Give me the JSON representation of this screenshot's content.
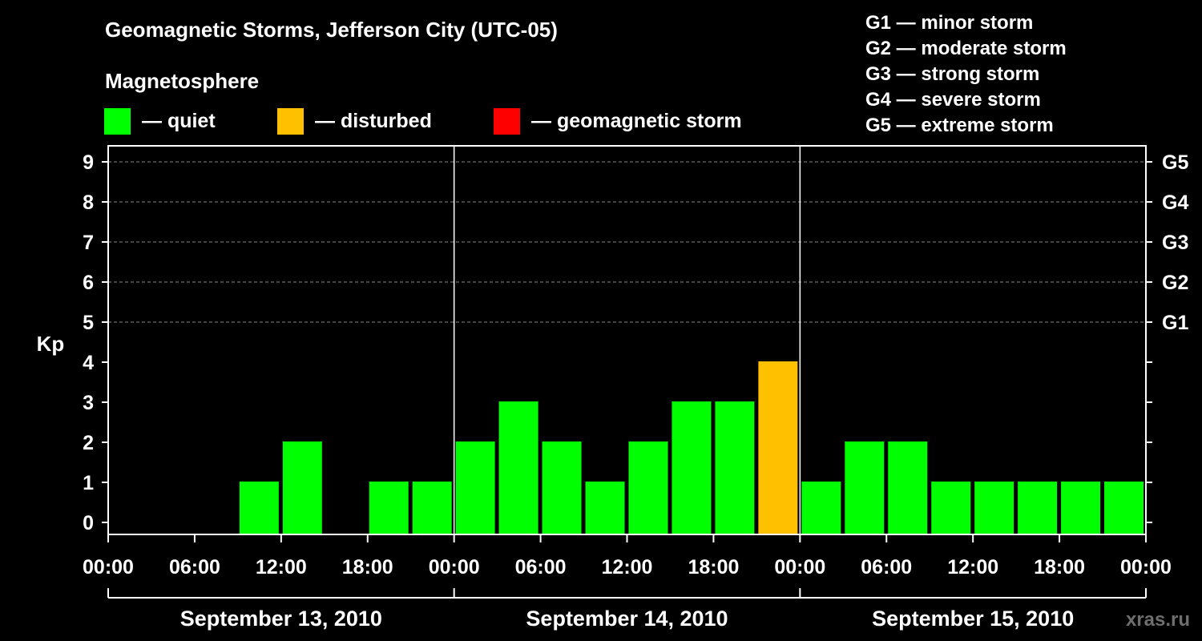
{
  "title": "Geomagnetic Storms, Jefferson City (UTC-05)",
  "subtitle": "Magnetosphere",
  "legend": [
    {
      "label": "— quiet",
      "color": "#00ff00"
    },
    {
      "label": "— disturbed",
      "color": "#ffc000"
    },
    {
      "label": "— geomagnetic storm",
      "color": "#ff0000"
    }
  ],
  "g_scale": [
    "G1 — minor storm",
    "G2 — moderate storm",
    "G3 — strong storm",
    "G4 — severe storm",
    "G5 — extreme storm"
  ],
  "watermark": "xras.ru",
  "chart_data": {
    "type": "bar",
    "ylabel": "Kp",
    "ylim": [
      0,
      9
    ],
    "y_ticks": [
      "0",
      "1",
      "2",
      "3",
      "4",
      "5",
      "6",
      "7",
      "8",
      "9"
    ],
    "right_ticks": [
      {
        "value": 5,
        "label": "G1"
      },
      {
        "value": 6,
        "label": "G2"
      },
      {
        "value": 7,
        "label": "G3"
      },
      {
        "value": 8,
        "label": "G4"
      },
      {
        "value": 9,
        "label": "G5"
      }
    ],
    "x_ticks": [
      "00:00",
      "06:00",
      "12:00",
      "18:00",
      "00:00",
      "06:00",
      "12:00",
      "18:00",
      "00:00",
      "06:00",
      "12:00",
      "18:00",
      "00:00"
    ],
    "days": [
      "September 13, 2010",
      "September 14, 2010",
      "September 15, 2010"
    ],
    "grid": "dashed horizontal at Kp 5-9",
    "categories": [
      "00:00",
      "03:00",
      "06:00",
      "09:00",
      "12:00",
      "15:00",
      "18:00",
      "21:00",
      "00:00",
      "03:00",
      "06:00",
      "09:00",
      "12:00",
      "15:00",
      "18:00",
      "21:00",
      "00:00",
      "03:00",
      "06:00",
      "09:00",
      "12:00",
      "15:00",
      "18:00",
      "21:00"
    ],
    "values": [
      0,
      0,
      0,
      1,
      2,
      0,
      1,
      1,
      2,
      3,
      2,
      1,
      2,
      3,
      3,
      4,
      1,
      2,
      2,
      1,
      1,
      1,
      1,
      1
    ],
    "colors": {
      "quiet": "#00ff00",
      "disturbed": "#ffc000",
      "storm": "#ff0000"
    }
  }
}
